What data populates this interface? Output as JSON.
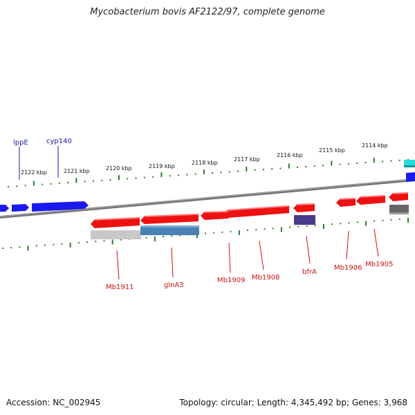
{
  "title": "Mycobacterium bovis AF2122/97, complete genome",
  "accession": "Accession: NC_002945",
  "topology": "Topology: circular; Length: 4,345,492 bp; Genes: 3,968",
  "scale_labels": [
    "2122 kbp",
    "2121 kbp",
    "2120 kbp",
    "2119 kbp",
    "2118 kbp",
    "2117 kbp",
    "2116 kbp",
    "2115 kbp",
    "2114 kbp"
  ],
  "forward_genes": [
    "lppE",
    "cyp140"
  ],
  "reverse_genes": [
    "Mb1911",
    "glnA3",
    "Mb1909",
    "Mb1908",
    "bfrA",
    "Mb1906",
    "Mb1905"
  ],
  "colors": {
    "forward_cds": "#1a1aee",
    "reverse_cds": "#ee1111",
    "backbone": "#808080",
    "ticks": "#2a7a2a",
    "forward_label": "#1a1aa6",
    "reverse_label": "#cc1111",
    "cog_lightgray": "#c8c8c8",
    "cog_steelblue": "#4a82b4",
    "cog_slateblue": "#4a3c8a",
    "cog_darkgray": "#666666",
    "cyan_feature": "#22dddd"
  }
}
